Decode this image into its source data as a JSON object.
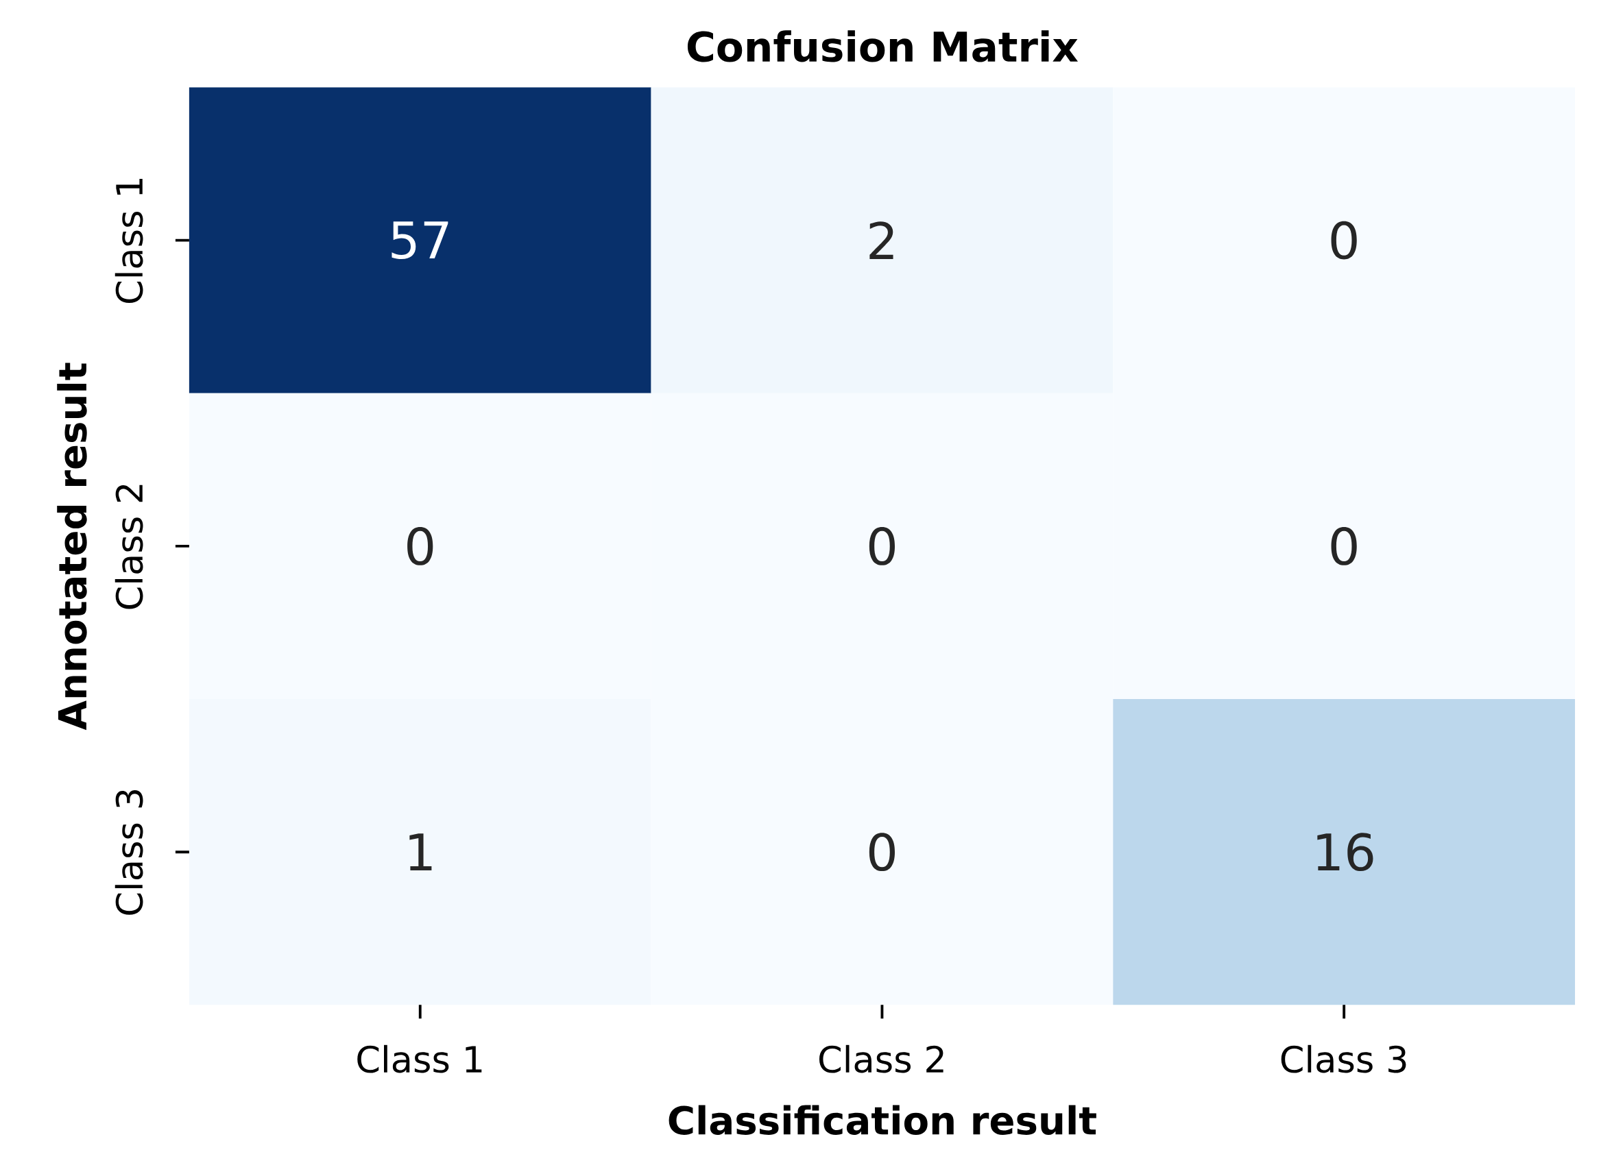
{
  "chart_data": {
    "type": "heatmap",
    "title": "Confusion Matrix",
    "xlabel": "Classification result",
    "ylabel": "Annotated result",
    "categories": [
      "Class 1",
      "Class 2",
      "Class 3"
    ],
    "y_categories": [
      "Class 1",
      "Class 2",
      "Class 3"
    ],
    "cells": [
      [
        57,
        2,
        0
      ],
      [
        0,
        0,
        0
      ],
      [
        1,
        0,
        16
      ]
    ],
    "data_labels": true
  }
}
